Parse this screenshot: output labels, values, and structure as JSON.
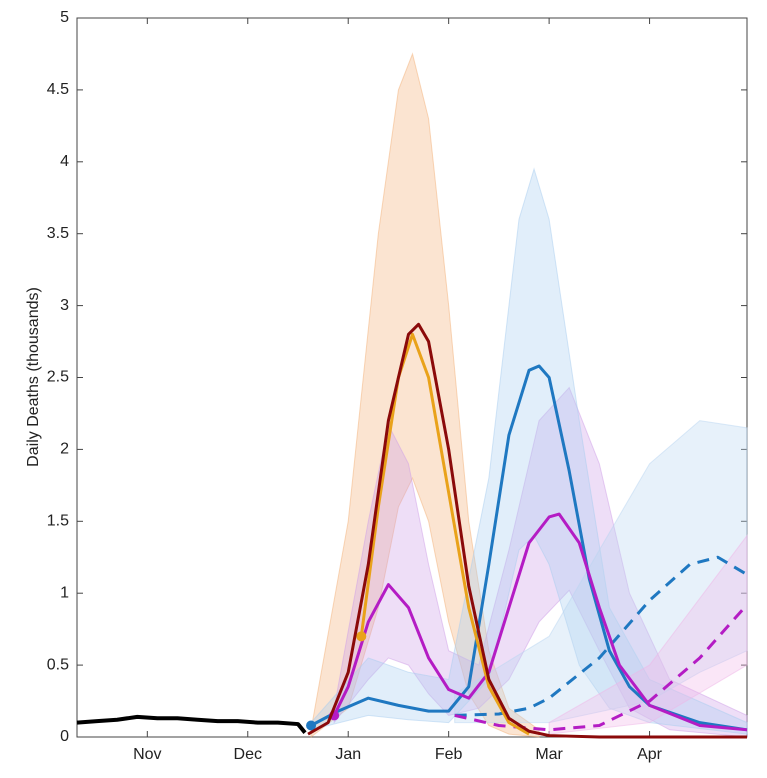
{
  "chart_data": {
    "type": "line",
    "y_label": "Daily Deaths (thousands)",
    "xlim": [
      0.3,
      6.97
    ],
    "xticks": [
      {
        "value": 1,
        "label": "Nov"
      },
      {
        "value": 2,
        "label": "Dec"
      },
      {
        "value": 3,
        "label": "Jan"
      },
      {
        "value": 4,
        "label": "Feb"
      },
      {
        "value": 5,
        "label": "Mar"
      },
      {
        "value": 6,
        "label": "Apr"
      }
    ],
    "ylim": [
      0,
      5
    ],
    "yticks": [
      0,
      0.5,
      1,
      1.5,
      2,
      2.5,
      3,
      3.5,
      4,
      4.5,
      5
    ],
    "bands": [
      {
        "color": "#f3b27a",
        "x": [
          2.63,
          3.0,
          3.3,
          3.5,
          3.64,
          3.8,
          4.0,
          4.2,
          4.4,
          4.6,
          4.9
        ],
        "upper": [
          0.05,
          1.5,
          3.5,
          4.5,
          4.75,
          4.3,
          3.0,
          1.5,
          0.6,
          0.2,
          0.05
        ],
        "lower": [
          0,
          0.2,
          0.9,
          1.6,
          1.8,
          1.5,
          0.8,
          0.3,
          0.08,
          0.02,
          0
        ]
      },
      {
        "color": "#cfa0e8",
        "x": [
          2.86,
          3.2,
          3.4,
          3.6,
          3.8,
          4.0,
          4.3,
          4.6,
          4.9,
          5.2,
          5.5,
          5.8,
          6.2,
          6.97
        ],
        "upper": [
          0.2,
          1.5,
          2.17,
          1.9,
          1.2,
          0.6,
          0.5,
          1.3,
          2.2,
          2.43,
          1.9,
          1.0,
          0.4,
          0.15
        ],
        "lower": [
          0.1,
          0.4,
          0.55,
          0.5,
          0.3,
          0.15,
          0.2,
          0.4,
          0.8,
          1.02,
          0.6,
          0.2,
          0.05,
          0
        ]
      },
      {
        "color": "#a9cdf0",
        "x": [
          2.63,
          3.2,
          3.6,
          4.0,
          4.4,
          4.7,
          4.85,
          5.0,
          5.3,
          5.6,
          6.0,
          6.97
        ],
        "upper": [
          0.1,
          0.55,
          0.45,
          0.4,
          1.8,
          3.6,
          3.95,
          3.6,
          2.2,
          0.9,
          0.4,
          0.1
        ],
        "lower": [
          0.05,
          0.15,
          0.12,
          0.1,
          0.4,
          1.3,
          1.4,
          1.2,
          0.5,
          0.2,
          0.1,
          0.02
        ]
      },
      {
        "color": "#b9d6f2",
        "x": [
          4.06,
          5.0,
          6.0,
          6.5,
          6.97
        ],
        "upper": [
          0.3,
          0.7,
          1.9,
          2.2,
          2.15
        ],
        "lower": [
          0.1,
          0.1,
          0.25,
          0.45,
          0.6
        ]
      },
      {
        "color": "#f0b6e8",
        "x": [
          5.0,
          6.0,
          6.97
        ],
        "upper": [
          0.1,
          0.5,
          1.4
        ],
        "lower": [
          0.02,
          0.1,
          0.5
        ]
      }
    ],
    "series": [
      {
        "color": "#000000",
        "width": 4,
        "x": [
          0.3,
          0.5,
          0.7,
          0.9,
          1.1,
          1.3,
          1.5,
          1.7,
          1.9,
          2.1,
          2.3,
          2.5,
          2.57
        ],
        "values": [
          0.1,
          0.11,
          0.12,
          0.14,
          0.13,
          0.13,
          0.12,
          0.11,
          0.11,
          0.1,
          0.1,
          0.09,
          0.03
        ]
      },
      {
        "color": "#1f78c1",
        "width": 3,
        "start_marker": true,
        "x": [
          2.63,
          2.9,
          3.2,
          3.5,
          3.8,
          4.0,
          4.2,
          4.4,
          4.6,
          4.8,
          4.9,
          5.0,
          5.2,
          5.4,
          5.6,
          5.8,
          6.0,
          6.5,
          6.97
        ],
        "values": [
          0.08,
          0.18,
          0.27,
          0.22,
          0.18,
          0.18,
          0.35,
          1.2,
          2.1,
          2.55,
          2.58,
          2.5,
          1.85,
          1.1,
          0.6,
          0.35,
          0.22,
          0.1,
          0.05
        ]
      },
      {
        "color": "#1f78c1",
        "width": 3,
        "dash": true,
        "x": [
          4.06,
          4.5,
          4.8,
          5.0,
          5.5,
          6.0,
          6.4,
          6.68,
          6.97
        ],
        "values": [
          0.15,
          0.16,
          0.2,
          0.27,
          0.55,
          0.95,
          1.2,
          1.25,
          1.13
        ]
      },
      {
        "color": "#b41cc4",
        "width": 3,
        "start_marker": true,
        "x": [
          2.86,
          3.0,
          3.2,
          3.4,
          3.6,
          3.8,
          4.0,
          4.2,
          4.4,
          4.6,
          4.8,
          5.0,
          5.1,
          5.3,
          5.5,
          5.7,
          6.0,
          6.5,
          6.97
        ],
        "values": [
          0.15,
          0.35,
          0.8,
          1.06,
          0.9,
          0.55,
          0.33,
          0.27,
          0.45,
          0.9,
          1.35,
          1.53,
          1.55,
          1.35,
          0.9,
          0.5,
          0.22,
          0.08,
          0.05
        ]
      },
      {
        "color": "#b41cc4",
        "width": 3,
        "dash": true,
        "x": [
          4.06,
          4.5,
          5.0,
          5.5,
          6.0,
          6.5,
          6.97
        ],
        "values": [
          0.15,
          0.08,
          0.05,
          0.08,
          0.25,
          0.55,
          0.92
        ]
      },
      {
        "color": "#e9a21a",
        "width": 3,
        "start_marker": true,
        "x": [
          3.13,
          3.3,
          3.5,
          3.64,
          3.8,
          4.0,
          4.2,
          4.4,
          4.6,
          4.8
        ],
        "values": [
          0.7,
          1.6,
          2.5,
          2.8,
          2.5,
          1.7,
          0.9,
          0.35,
          0.1,
          0.02
        ]
      },
      {
        "color": "#8b0a0a",
        "width": 3,
        "x": [
          2.6,
          2.8,
          3.0,
          3.2,
          3.4,
          3.6,
          3.7,
          3.8,
          4.0,
          4.2,
          4.4,
          4.6,
          4.8,
          5.0,
          5.5,
          6.97
        ],
        "values": [
          0.02,
          0.1,
          0.45,
          1.2,
          2.2,
          2.8,
          2.87,
          2.75,
          2.0,
          1.05,
          0.4,
          0.13,
          0.04,
          0.01,
          0,
          0
        ]
      }
    ]
  }
}
